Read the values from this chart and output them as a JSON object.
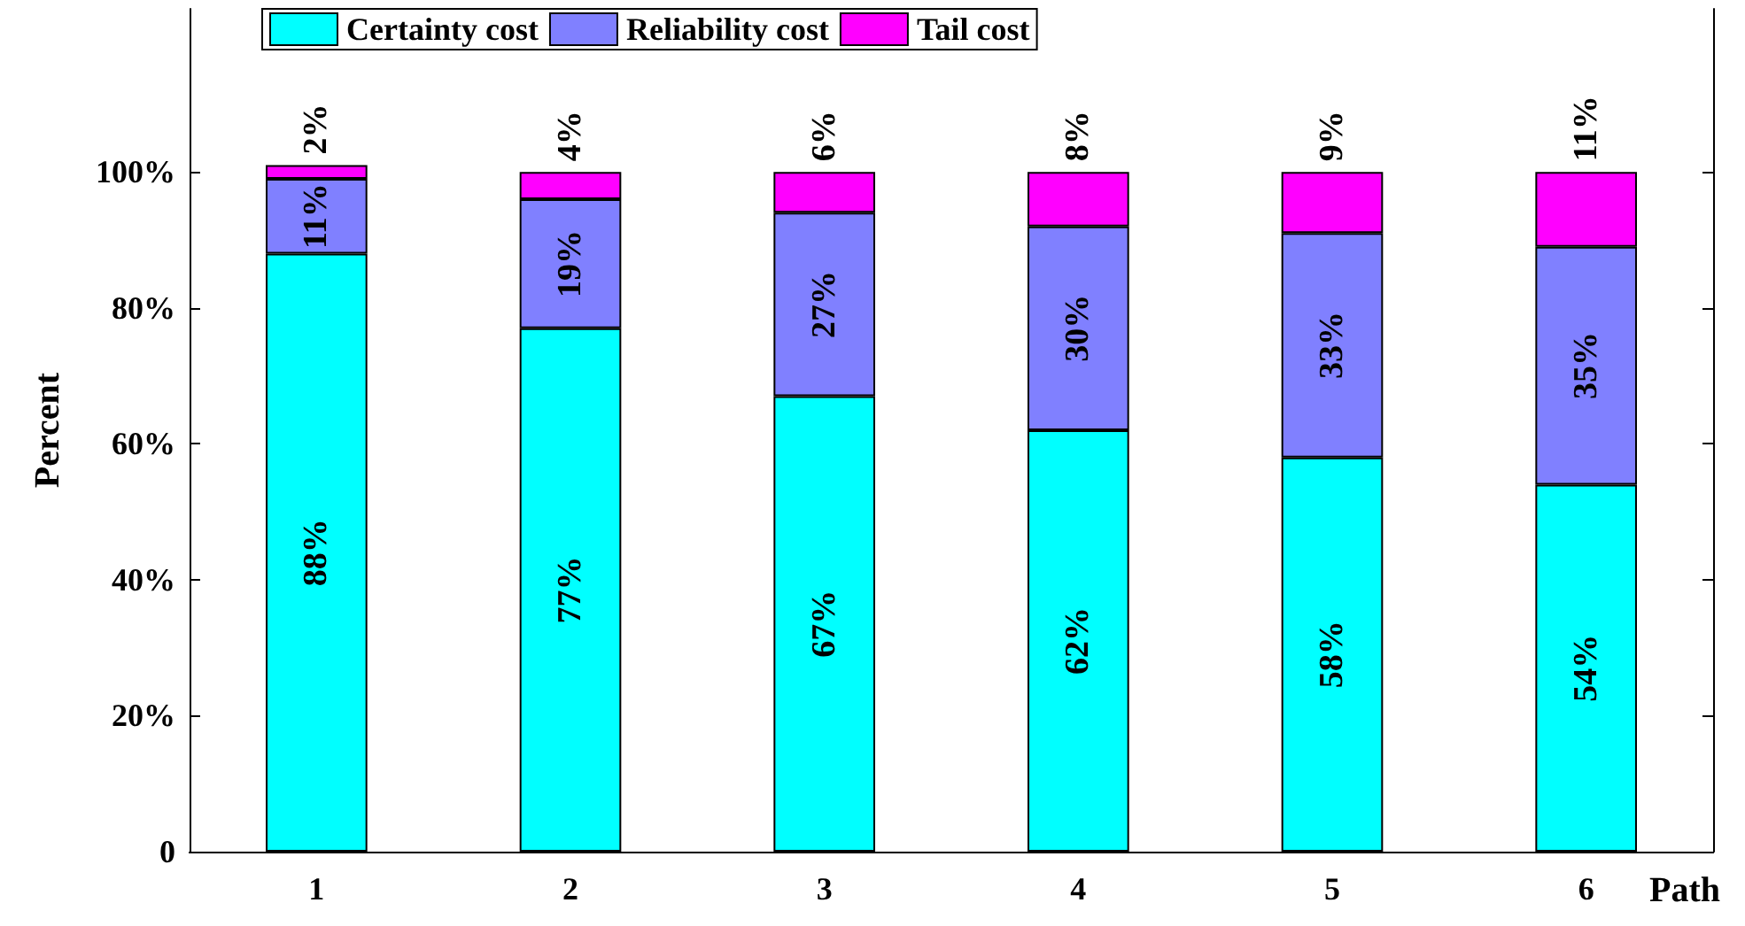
{
  "chart_data": {
    "type": "bar",
    "stacked": true,
    "xlabel": "Path",
    "ylabel": "Percent",
    "categories": [
      "1",
      "2",
      "3",
      "4",
      "5",
      "6"
    ],
    "series": [
      {
        "name": "Certainty cost",
        "color": "#00ffff",
        "values": [
          88,
          77,
          67,
          62,
          58,
          54
        ],
        "value_labels": [
          "88%",
          "77%",
          "67%",
          "62%",
          "58%",
          "54%"
        ]
      },
      {
        "name": "Reliability cost",
        "color": "#8080ff",
        "values": [
          11,
          19,
          27,
          30,
          33,
          35
        ],
        "value_labels": [
          "11%",
          "19%",
          "27%",
          "30%",
          "33%",
          "35%"
        ]
      },
      {
        "name": "Tail cost",
        "color": "#ff00ff",
        "values": [
          2,
          4,
          6,
          8,
          9,
          11
        ],
        "value_labels": [
          "2%",
          "4%",
          "6%",
          "8%",
          "9%",
          "11%"
        ]
      }
    ],
    "ylim": [
      0,
      124
    ],
    "yticks": [
      0,
      {
        "value": 20,
        "label": "20%"
      },
      {
        "value": 40,
        "label": "40%"
      },
      {
        "value": 60,
        "label": "60%"
      },
      {
        "value": 80,
        "label": "80%"
      },
      {
        "value": 100,
        "label": "100%"
      }
    ],
    "grid": false,
    "legend": "top left"
  }
}
